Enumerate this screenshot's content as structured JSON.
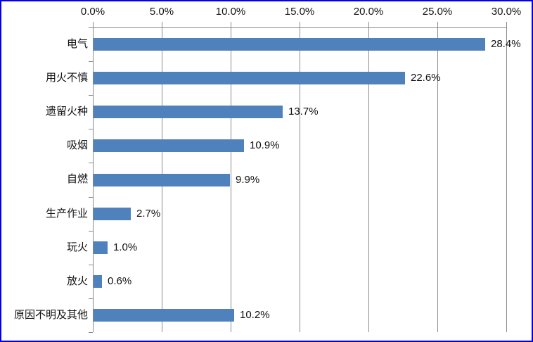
{
  "chart_data": {
    "type": "bar",
    "orientation": "horizontal",
    "title": "",
    "legend_position": "none",
    "grid": "vertical-major",
    "categories": [
      "电气",
      "用火不慎",
      "遗留火种",
      "吸烟",
      "自燃",
      "生产作业",
      "玩火",
      "放火",
      "原因不明及其他"
    ],
    "values": [
      28.4,
      22.6,
      13.7,
      10.9,
      9.9,
      2.7,
      1.0,
      0.6,
      10.2
    ],
    "value_labels": [
      "28.4%",
      "22.6%",
      "13.7%",
      "10.9%",
      "9.9%",
      "2.7%",
      "1.0%",
      "0.6%",
      "10.2%"
    ],
    "x_axis": {
      "position": "top",
      "min": 0,
      "max": 30,
      "step": 5,
      "tick_labels": [
        "0.0%",
        "5.0%",
        "10.0%",
        "15.0%",
        "20.0%",
        "25.0%",
        "30.0%"
      ]
    },
    "colors": {
      "bar": "#4F81BD",
      "gridline": "#8A8A8A",
      "axis": "#8A8A8A",
      "text": "#111111",
      "frame_border": "#0000EE",
      "background": "#FFFFFF"
    }
  }
}
